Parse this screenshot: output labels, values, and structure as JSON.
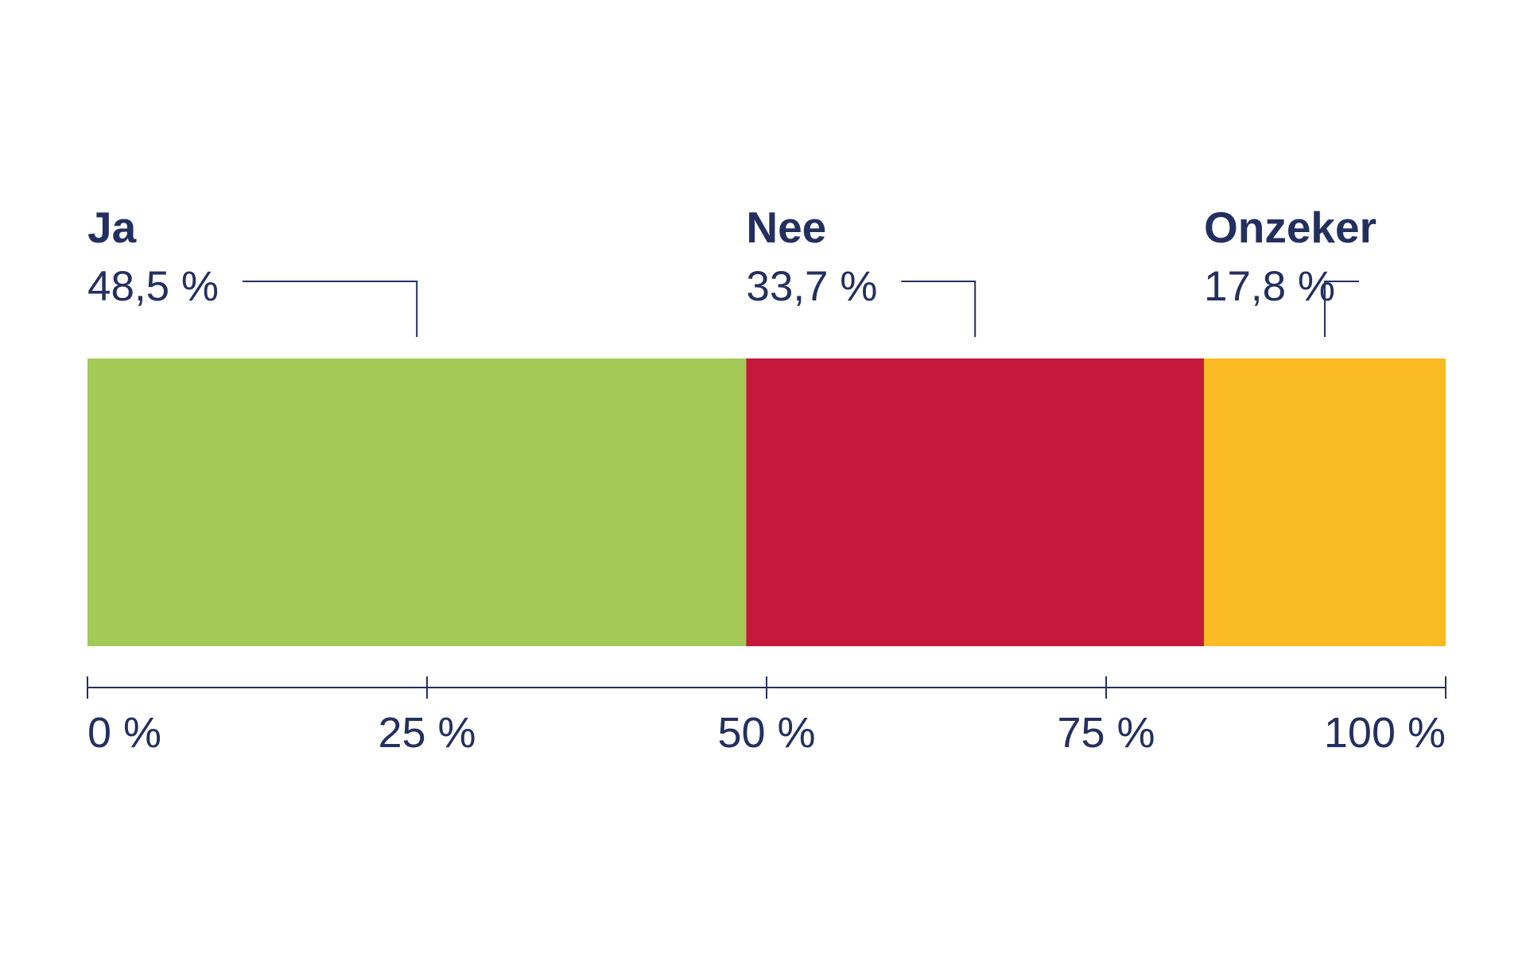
{
  "chart_data": {
    "type": "bar",
    "orientation": "horizontal-stacked",
    "title": "",
    "xlabel": "",
    "ylabel": "",
    "xlim": [
      0,
      100
    ],
    "grid": false,
    "series": [
      {
        "name": "Ja",
        "value": 48.5,
        "value_label": "48,5 %",
        "color": "#a3c957"
      },
      {
        "name": "Nee",
        "value": 33.7,
        "value_label": "33,7 %",
        "color": "#c5183b"
      },
      {
        "name": "Onzeker",
        "value": 17.8,
        "value_label": "17,8 %",
        "color": "#fbbb22"
      }
    ],
    "ticks": [
      {
        "value": 0,
        "label": "0 %"
      },
      {
        "value": 25,
        "label": "25 %"
      },
      {
        "value": 50,
        "label": "50 %"
      },
      {
        "value": 75,
        "label": "75 %"
      },
      {
        "value": 100,
        "label": "100 %"
      }
    ],
    "text_color": "#23305f",
    "axis_color": "#23305f"
  }
}
